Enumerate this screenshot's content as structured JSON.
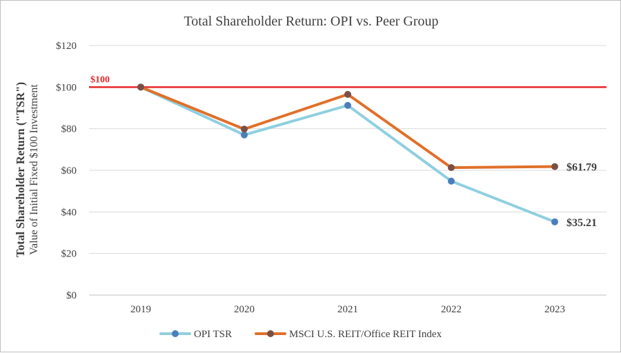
{
  "chart_data": {
    "type": "line",
    "title": "Total Shareholder Return: OPI vs. Peer Group",
    "ylabel_line1": "Total Shareholder Return (\"TSR\")",
    "ylabel_line2": "Value of Initial Fixed $100 Investment",
    "xlabel": "",
    "categories": [
      "2019",
      "2020",
      "2021",
      "2022",
      "2023"
    ],
    "ylim": [
      0,
      120
    ],
    "yticks": [
      0,
      20,
      40,
      60,
      80,
      100,
      120
    ],
    "ytick_labels": [
      "$0",
      "$20",
      "$40",
      "$60",
      "$80",
      "$100",
      "$120"
    ],
    "grid": true,
    "legend_position": "bottom",
    "reference_line": {
      "value": 100,
      "label": "$100",
      "color": "#e8262a"
    },
    "series": [
      {
        "name": "OPI TSR",
        "values": [
          100,
          77,
          91.2,
          54.8,
          35.21
        ],
        "line_color": "#8fcfe0",
        "marker_color": "#4a7ebb",
        "end_label": "$35.21"
      },
      {
        "name": "MSCI U.S. REIT/Office REIT Index",
        "values": [
          100,
          79.8,
          96.5,
          61.3,
          61.79
        ],
        "line_color": "#e0702a",
        "marker_color": "#7b4f45",
        "end_label": "$61.79"
      }
    ]
  }
}
